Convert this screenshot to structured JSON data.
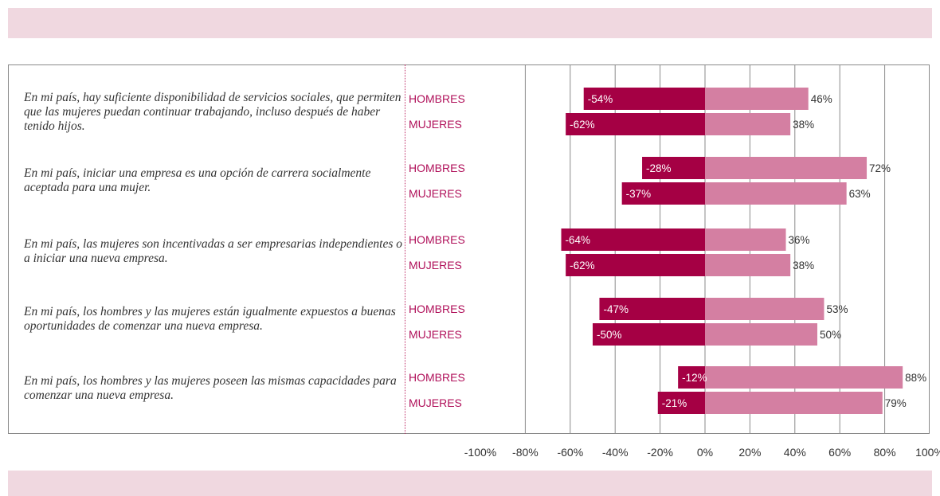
{
  "colors": {
    "negative": "#a50044",
    "positive": "#d47fa2",
    "gender_label": "#b0105a",
    "band": "#f0d8e0"
  },
  "questions": [
    "En mi país, hay suficiente disponibilidad de servicios sociales, que permiten que las mujeres puedan continuar trabajando, incluso después de haber tenido hijos.",
    "En mi país, iniciar una empresa es una opción de carrera socialmente aceptada para una mujer.",
    "En mi país, las mujeres son incentivadas a ser empresarias independientes o a iniciar una nueva empresa.",
    "En mi país, los hombres y las mujeres están igualmente expuestos a buenas oportunidades de comenzar una nueva empresa.",
    "En mi país, los hombres y las mujeres poseen las mismas capacidades para comenzar una nueva empresa."
  ],
  "chart_data": {
    "type": "bar",
    "orientation": "horizontal",
    "stacking": "diverging",
    "xlim": [
      -100,
      100
    ],
    "x_ticks": [
      "-100%",
      "-80%",
      "-60%",
      "-40%",
      "-20%",
      "0%",
      "20%",
      "40%",
      "60%",
      "80%",
      "100%"
    ],
    "grid": true,
    "groups": [
      {
        "rows": [
          {
            "label": "HOMBRES",
            "negative": -54,
            "positive": 46,
            "neg_label": "-54%",
            "pos_label": "46%"
          },
          {
            "label": "MUJERES",
            "negative": -62,
            "positive": 38,
            "neg_label": "-62%",
            "pos_label": "38%"
          }
        ]
      },
      {
        "rows": [
          {
            "label": "HOMBRES",
            "negative": -28,
            "positive": 72,
            "neg_label": "-28%",
            "pos_label": "72%"
          },
          {
            "label": "MUJERES",
            "negative": -37,
            "positive": 63,
            "neg_label": "-37%",
            "pos_label": "63%"
          }
        ]
      },
      {
        "rows": [
          {
            "label": "HOMBRES",
            "negative": -64,
            "positive": 36,
            "neg_label": "-64%",
            "pos_label": "36%"
          },
          {
            "label": "MUJERES",
            "negative": -62,
            "positive": 38,
            "neg_label": "-62%",
            "pos_label": "38%"
          }
        ]
      },
      {
        "rows": [
          {
            "label": "HOMBRES",
            "negative": -47,
            "positive": 53,
            "neg_label": "-47%",
            "pos_label": "53%"
          },
          {
            "label": "MUJERES",
            "negative": -50,
            "positive": 50,
            "neg_label": "-50%",
            "pos_label": "50%"
          }
        ]
      },
      {
        "rows": [
          {
            "label": "HOMBRES",
            "negative": -12,
            "positive": 88,
            "neg_label": "-12%",
            "pos_label": "88%"
          },
          {
            "label": "MUJERES",
            "negative": -21,
            "positive": 79,
            "neg_label": "-21%",
            "pos_label": "79%"
          }
        ]
      }
    ]
  }
}
